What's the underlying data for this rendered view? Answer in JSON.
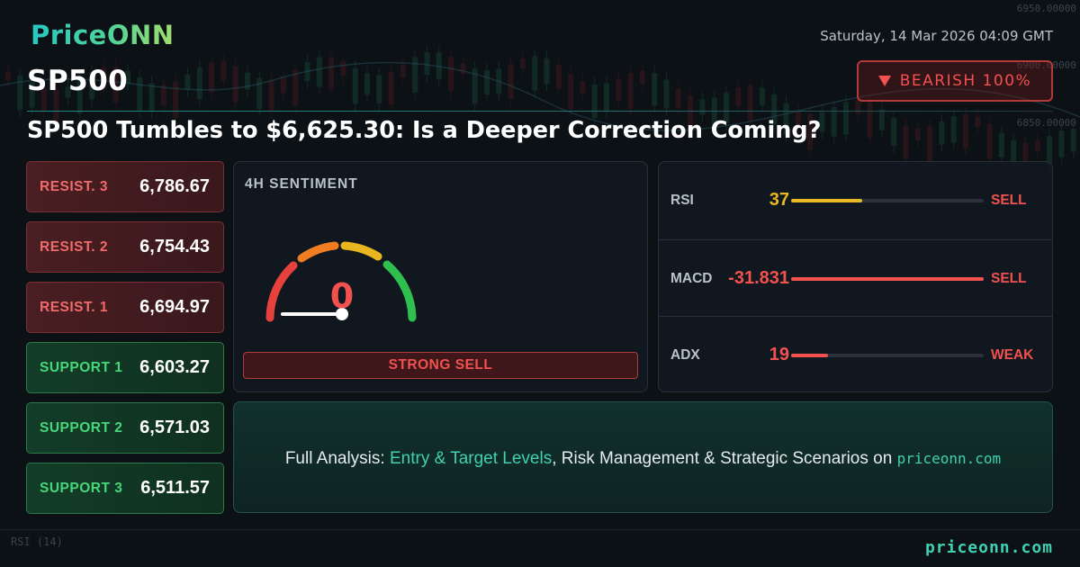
{
  "brand": {
    "logo": "PriceONN",
    "footer_site": "priceonn.com"
  },
  "datetime": "Saturday, 14 Mar 2026 04:09 GMT",
  "ticker": "SP500",
  "badge": {
    "label": "BEARISH 100%",
    "color": "#f1514f"
  },
  "headline": "SP500 Tumbles to $6,625.30: Is a Deeper Correction Coming?",
  "levels": [
    {
      "label": "RESIST. 3",
      "value": "6,786.67",
      "kind": "resistance"
    },
    {
      "label": "RESIST. 2",
      "value": "6,754.43",
      "kind": "resistance"
    },
    {
      "label": "RESIST. 1",
      "value": "6,694.97",
      "kind": "resistance"
    },
    {
      "label": "SUPPORT 1",
      "value": "6,603.27",
      "kind": "support"
    },
    {
      "label": "SUPPORT 2",
      "value": "6,571.03",
      "kind": "support"
    },
    {
      "label": "SUPPORT 3",
      "value": "6,511.57",
      "kind": "support"
    }
  ],
  "sentiment": {
    "title": "4H SENTIMENT",
    "value": "0",
    "level_fraction": 0,
    "verdict": "STRONG SELL"
  },
  "indicators": [
    {
      "name": "RSI",
      "value": "37",
      "signal": "SELL",
      "fill_fraction": 0.37,
      "color": "#e8b923"
    },
    {
      "name": "MACD",
      "value": "-31.831",
      "signal": "SELL",
      "fill_fraction": 1.0,
      "color": "#f1514f"
    },
    {
      "name": "ADX",
      "value": "19",
      "signal": "WEAK",
      "fill_fraction": 0.19,
      "color": "#f1514f"
    }
  ],
  "promo": {
    "prefix": "Full Analysis: ",
    "highlight": "Entry & Target Levels",
    "middle": ", Risk Management & Strategic Scenarios on ",
    "site": "priceonn.com"
  },
  "background": {
    "axis_labels": [
      "6950.00000",
      "6900.00000",
      "6850.00000"
    ],
    "rsi_label": "RSI (14)"
  },
  "colors": {
    "accent": "#3fd1b1",
    "bearish": "#f1514f",
    "bullish": "#47d77a",
    "background": "#0c1116"
  }
}
